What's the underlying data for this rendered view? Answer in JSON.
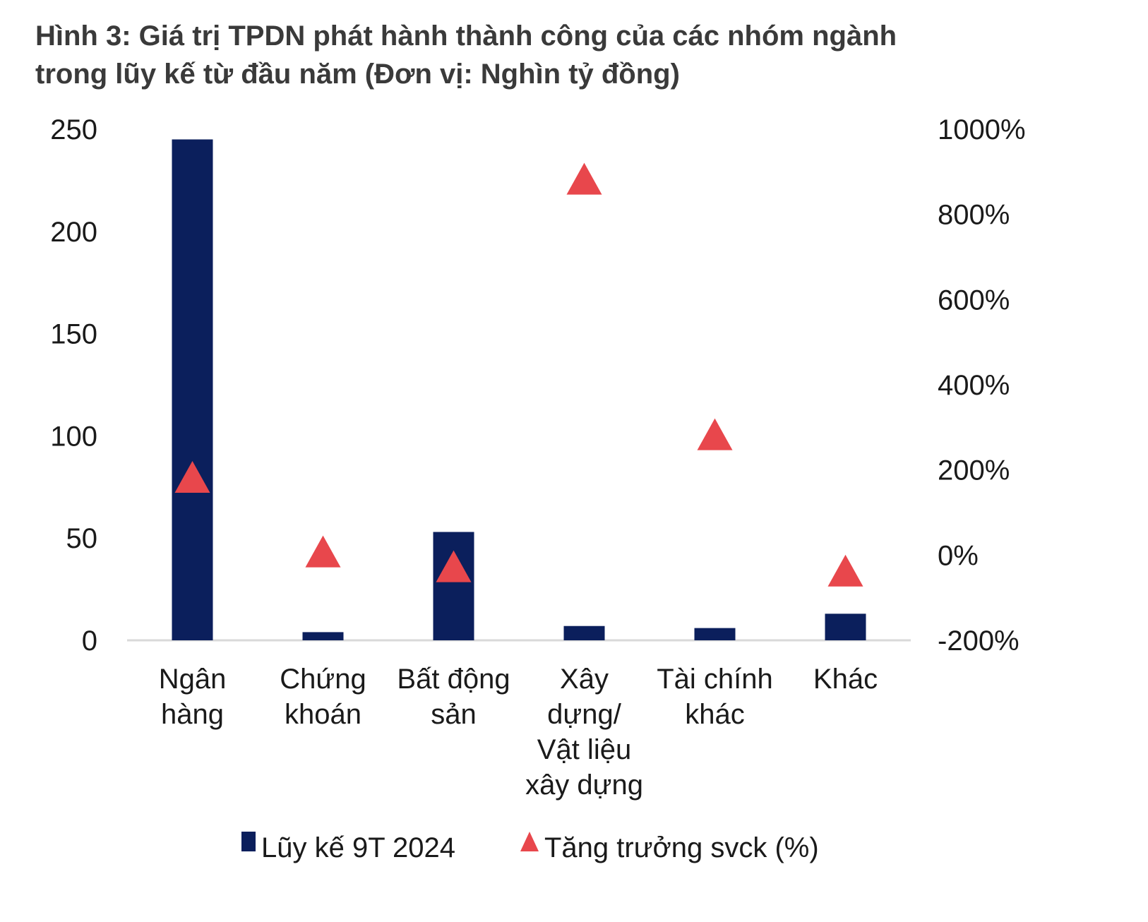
{
  "title_line1": "Hình 3: Giá trị TPDN phát hành thành công của các nhóm ngành",
  "title_line2": "trong lũy kế từ đầu năm (Đơn vị: Nghìn tỷ đồng)",
  "colors": {
    "bar": "#0b1f5c",
    "marker": "#e8474c",
    "axis": "#d9d9d9",
    "text": "#1a1a1a"
  },
  "chart_data": {
    "type": "bar",
    "title": "Hình 3: Giá trị TPDN phát hành thành công của các nhóm ngành trong lũy kế từ đầu năm (Đơn vị: Nghìn tỷ đồng)",
    "categories": [
      [
        "Ngân",
        "hàng"
      ],
      [
        "Chứng",
        "khoán"
      ],
      [
        "Bất động",
        "sản"
      ],
      [
        "Xây",
        "dựng/",
        "Vật liệu",
        "xây dựng"
      ],
      [
        "Tài chính",
        "khác"
      ],
      [
        "Khác"
      ]
    ],
    "series": [
      {
        "name": "Lũy kế 9T 2024",
        "type": "bar",
        "axis": "left",
        "values": [
          245,
          4,
          53,
          7,
          6,
          13
        ]
      },
      {
        "name": "Tăng trưởng svck (%)",
        "type": "scatter",
        "marker": "triangle",
        "axis": "right",
        "values": [
          180,
          5,
          -30,
          880,
          280,
          -40
        ]
      }
    ],
    "y_left": {
      "min": 0,
      "max": 250,
      "ticks": [
        0,
        50,
        100,
        150,
        200,
        250
      ],
      "tick_labels": [
        "0",
        "50",
        "100",
        "150",
        "200",
        "250"
      ]
    },
    "y_right": {
      "min": -200,
      "max": 1000,
      "ticks": [
        -200,
        0,
        200,
        400,
        600,
        800,
        1000
      ],
      "tick_labels": [
        "-200%",
        "0%",
        "200%",
        "400%",
        "600%",
        "800%",
        "1000%"
      ]
    },
    "grid": false,
    "legend": {
      "position": "bottom",
      "entries": [
        "Lũy kế 9T 2024",
        "Tăng trưởng svck (%)"
      ]
    }
  }
}
